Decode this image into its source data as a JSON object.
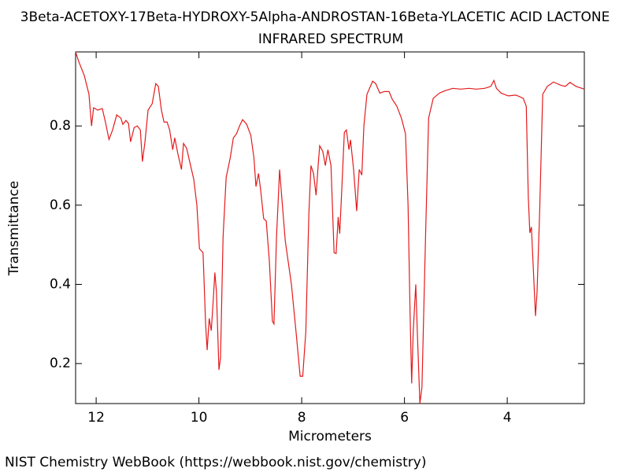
{
  "chart_data": {
    "type": "line",
    "title": "3Beta-ACETOXY-17Beta-HYDROXY-5Alpha-ANDROSTAN-16Beta-YLACETIC ACID LACTONE",
    "subtitle": "INFRARED SPECTRUM",
    "x_label": "Micrometers",
    "y_label": "Transmittance",
    "footer": "NIST Chemistry WebBook (https://webbook.nist.gov/chemistry)",
    "xlim": [
      12.4,
      2.5
    ],
    "ylim": [
      0.099,
      0.987
    ],
    "xticks": [
      12,
      10,
      8,
      6,
      4
    ],
    "yticks": [
      0.2,
      0.4,
      0.6,
      0.8
    ],
    "series": [
      {
        "color": "#e41a1c",
        "x": [
          12.4,
          12.34,
          12.23,
          12.14,
          12.09,
          12.05,
          11.97,
          11.88,
          11.82,
          11.75,
          11.68,
          11.6,
          11.52,
          11.48,
          11.42,
          11.37,
          11.33,
          11.26,
          11.2,
          11.14,
          11.1,
          11.05,
          10.99,
          10.91,
          10.84,
          10.79,
          10.73,
          10.68,
          10.62,
          10.57,
          10.51,
          10.47,
          10.41,
          10.34,
          10.3,
          10.24,
          10.18,
          10.1,
          10.04,
          9.99,
          9.92,
          9.87,
          9.84,
          9.8,
          9.76,
          9.72,
          9.69,
          9.66,
          9.61,
          9.58,
          9.53,
          9.47,
          9.39,
          9.33,
          9.27,
          9.21,
          9.15,
          9.07,
          8.99,
          8.93,
          8.89,
          8.84,
          8.8,
          8.74,
          8.69,
          8.63,
          8.57,
          8.54,
          8.49,
          8.43,
          8.4,
          8.32,
          8.2,
          8.11,
          8.03,
          7.98,
          7.92,
          7.86,
          7.82,
          7.77,
          7.72,
          7.68,
          7.65,
          7.59,
          7.54,
          7.49,
          7.43,
          7.37,
          7.33,
          7.29,
          7.26,
          7.22,
          7.17,
          7.13,
          7.08,
          7.05,
          6.99,
          6.93,
          6.88,
          6.83,
          6.79,
          6.73,
          6.62,
          6.56,
          6.48,
          6.39,
          6.3,
          6.24,
          6.15,
          6.06,
          5.98,
          5.93,
          5.89,
          5.86,
          5.83,
          5.78,
          5.75,
          5.7,
          5.66,
          5.59,
          5.53,
          5.44,
          5.32,
          5.21,
          5.06,
          4.9,
          4.75,
          4.6,
          4.44,
          4.32,
          4.26,
          4.21,
          4.12,
          3.98,
          3.83,
          3.69,
          3.63,
          3.59,
          3.56,
          3.53,
          3.5,
          3.45,
          3.42,
          3.37,
          3.31,
          3.22,
          3.1,
          2.96,
          2.87,
          2.78,
          2.66,
          2.5
        ],
        "values": [
          0.987,
          0.963,
          0.927,
          0.88,
          0.8,
          0.846,
          0.84,
          0.844,
          0.81,
          0.766,
          0.79,
          0.828,
          0.82,
          0.804,
          0.814,
          0.806,
          0.76,
          0.796,
          0.8,
          0.79,
          0.71,
          0.76,
          0.84,
          0.856,
          0.907,
          0.9,
          0.84,
          0.81,
          0.81,
          0.79,
          0.74,
          0.77,
          0.73,
          0.69,
          0.756,
          0.744,
          0.71,
          0.665,
          0.6,
          0.49,
          0.48,
          0.3,
          0.234,
          0.314,
          0.283,
          0.363,
          0.43,
          0.383,
          0.184,
          0.214,
          0.52,
          0.67,
          0.72,
          0.77,
          0.78,
          0.8,
          0.816,
          0.804,
          0.776,
          0.72,
          0.647,
          0.68,
          0.64,
          0.566,
          0.56,
          0.46,
          0.307,
          0.3,
          0.52,
          0.69,
          0.64,
          0.51,
          0.4,
          0.28,
          0.168,
          0.168,
          0.28,
          0.58,
          0.7,
          0.68,
          0.625,
          0.7,
          0.75,
          0.736,
          0.7,
          0.74,
          0.7,
          0.48,
          0.478,
          0.57,
          0.528,
          0.64,
          0.784,
          0.79,
          0.74,
          0.765,
          0.69,
          0.585,
          0.69,
          0.676,
          0.8,
          0.88,
          0.913,
          0.907,
          0.883,
          0.887,
          0.887,
          0.868,
          0.85,
          0.82,
          0.78,
          0.6,
          0.32,
          0.15,
          0.28,
          0.4,
          0.28,
          0.099,
          0.14,
          0.52,
          0.82,
          0.87,
          0.883,
          0.889,
          0.895,
          0.893,
          0.895,
          0.893,
          0.895,
          0.9,
          0.915,
          0.895,
          0.883,
          0.876,
          0.878,
          0.87,
          0.85,
          0.62,
          0.53,
          0.545,
          0.46,
          0.32,
          0.38,
          0.58,
          0.88,
          0.9,
          0.911,
          0.903,
          0.9,
          0.91,
          0.9,
          0.893
        ]
      }
    ]
  }
}
